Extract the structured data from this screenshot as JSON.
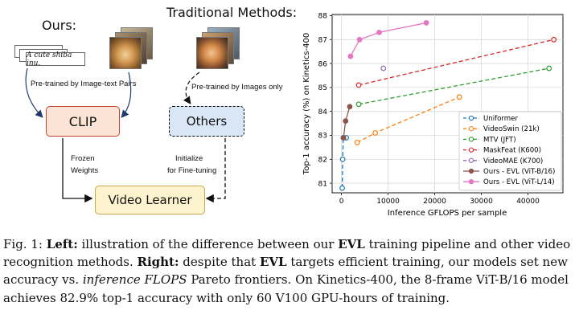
{
  "left_panel": {
    "ours_label": "Ours:",
    "traditional_label": "Traditional Methods:",
    "text_card": "A cute shiba inu.",
    "pretrained_image_text": "Pre-trained by Image-text Pairs",
    "pretrained_images_only": "Pre-trained by Images only",
    "clip_label": "CLIP",
    "others_label": "Others",
    "frozen_line1": "Frozen",
    "frozen_line2": "Weights",
    "initialize_line1": "Initialize",
    "initialize_line2": "for Fine-tuning",
    "video_learner_label": "Video Learner"
  },
  "caption": {
    "prefix": "Fig. 1: ",
    "left_label": "Left:",
    "s1": " illustration of the difference between our ",
    "evl": "EVL",
    "s2": " training pipeline and other video recognition methods. ",
    "right_label": "Right:",
    "s3": " despite that ",
    "s4": " targets efficient training, our models set new accuracy vs. ",
    "inference_flops": "inference FLOPS",
    "s5": " Pareto frontiers. On Kinetics-400, the 8-frame ViT-B/16 model achieves 82.9% top-1 accuracy with only 60 V100 GPU-hours of training."
  },
  "chart_data": {
    "type": "line",
    "xlabel": "Inference GFLOPS per sample",
    "ylabel": "Top-1 accuracy (%) on Kinetics-400",
    "xlim": [
      -2000,
      47500
    ],
    "ylim": [
      80.6,
      88.05
    ],
    "xticks": [
      0,
      10000,
      20000,
      30000,
      40000
    ],
    "yticks": [
      81,
      82,
      83,
      84,
      85,
      86,
      87,
      88
    ],
    "legend_position": "lower-right",
    "series": [
      {
        "name": "Uniformer",
        "color": "#1f77b4",
        "dash": true,
        "marker": "open",
        "x": [
          167,
          259,
          389,
          1036
        ],
        "y": [
          80.8,
          82.0,
          82.9,
          82.9
        ]
      },
      {
        "name": "VideoSwin (21k)",
        "color": "#ff7f0e",
        "dash": true,
        "marker": "open",
        "x": [
          3380,
          7248,
          25284
        ],
        "y": [
          82.7,
          83.1,
          84.6
        ]
      },
      {
        "name": "MTV (JFT)",
        "color": "#2ca02c",
        "dash": true,
        "marker": "open",
        "x": [
          3706,
          44520
        ],
        "y": [
          84.3,
          85.8
        ]
      },
      {
        "name": "MaskFeat (K600)",
        "color": "#d62728",
        "dash": true,
        "marker": "open",
        "x": [
          3700,
          45540
        ],
        "y": [
          85.1,
          87.0
        ]
      },
      {
        "name": "VideoMAE (K700)",
        "color": "#9467bd",
        "dash": true,
        "marker": "open",
        "x": [
          9000
        ],
        "y": [
          85.8
        ]
      },
      {
        "name": "Ours - EVL (ViT-B/16)",
        "color": "#8c564b",
        "dash": false,
        "marker": "filled",
        "x": [
          445,
          889,
          1778
        ],
        "y": [
          82.9,
          83.6,
          84.2
        ]
      },
      {
        "name": "Ours - EVL (ViT-L/14)",
        "color": "#e377c2",
        "dash": false,
        "marker": "filled",
        "x": [
          1944,
          3888,
          8088,
          18196
        ],
        "y": [
          86.3,
          87.0,
          87.3,
          87.7
        ]
      }
    ]
  }
}
